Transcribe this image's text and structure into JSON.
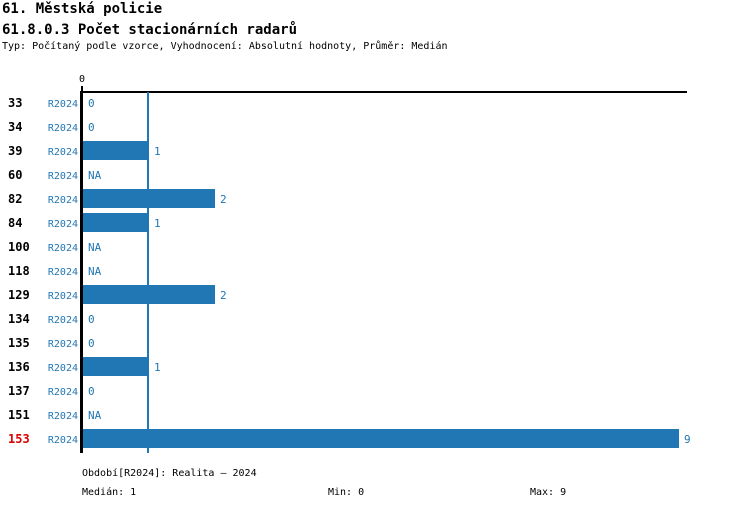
{
  "header": {
    "title": "61. Městská policie",
    "subtitle": "61.8.0.3 Počet stacionárních radarů",
    "meta": "Typ: Počítaný podle vzorce, Vyhodnocení: Absolutní hodnoty, Průměr: Medián"
  },
  "chart_data": {
    "type": "bar",
    "orientation": "horizontal",
    "title": "61.8.0.3 Počet stacionárních radarů",
    "axis_tick_label": "0",
    "xlim": [
      0,
      9
    ],
    "grid": false,
    "median_value": 1,
    "series_name": "R2024",
    "categories": [
      "33",
      "34",
      "39",
      "60",
      "82",
      "84",
      "100",
      "118",
      "129",
      "134",
      "135",
      "136",
      "137",
      "151",
      "153"
    ],
    "values": [
      0,
      0,
      1,
      null,
      2,
      1,
      null,
      null,
      2,
      0,
      0,
      1,
      0,
      null,
      9
    ],
    "value_labels": [
      "0",
      "0",
      "1",
      "NA",
      "2",
      "1",
      "NA",
      "NA",
      "2",
      "0",
      "0",
      "1",
      "0",
      "NA",
      "9"
    ],
    "highlight_category": "153"
  },
  "rows": [
    {
      "id": "33",
      "period": "R2024",
      "value": 0,
      "label": "0",
      "highlighted": false
    },
    {
      "id": "34",
      "period": "R2024",
      "value": 0,
      "label": "0",
      "highlighted": false
    },
    {
      "id": "39",
      "period": "R2024",
      "value": 1,
      "label": "1",
      "highlighted": false
    },
    {
      "id": "60",
      "period": "R2024",
      "value": null,
      "label": "NA",
      "highlighted": false
    },
    {
      "id": "82",
      "period": "R2024",
      "value": 2,
      "label": "2",
      "highlighted": false
    },
    {
      "id": "84",
      "period": "R2024",
      "value": 1,
      "label": "1",
      "highlighted": false
    },
    {
      "id": "100",
      "period": "R2024",
      "value": null,
      "label": "NA",
      "highlighted": false
    },
    {
      "id": "118",
      "period": "R2024",
      "value": null,
      "label": "NA",
      "highlighted": false
    },
    {
      "id": "129",
      "period": "R2024",
      "value": 2,
      "label": "2",
      "highlighted": false
    },
    {
      "id": "134",
      "period": "R2024",
      "value": 0,
      "label": "0",
      "highlighted": false
    },
    {
      "id": "135",
      "period": "R2024",
      "value": 0,
      "label": "0",
      "highlighted": false
    },
    {
      "id": "136",
      "period": "R2024",
      "value": 1,
      "label": "1",
      "highlighted": false
    },
    {
      "id": "137",
      "period": "R2024",
      "value": 0,
      "label": "0",
      "highlighted": false
    },
    {
      "id": "151",
      "period": "R2024",
      "value": null,
      "label": "NA",
      "highlighted": false
    },
    {
      "id": "153",
      "period": "R2024",
      "value": 9,
      "label": "9",
      "highlighted": true
    }
  ],
  "footer": {
    "period_line": "Období[R2024]: Realita – 2024",
    "median_label": "Medián: 1",
    "min_label": "Min: 0",
    "max_label": "Max: 9"
  },
  "colors": {
    "bar": "#2077b4",
    "blue_text": "#2077b4",
    "median_line": "#2077b4",
    "highlight": "#dd0000",
    "axis": "#000000"
  }
}
